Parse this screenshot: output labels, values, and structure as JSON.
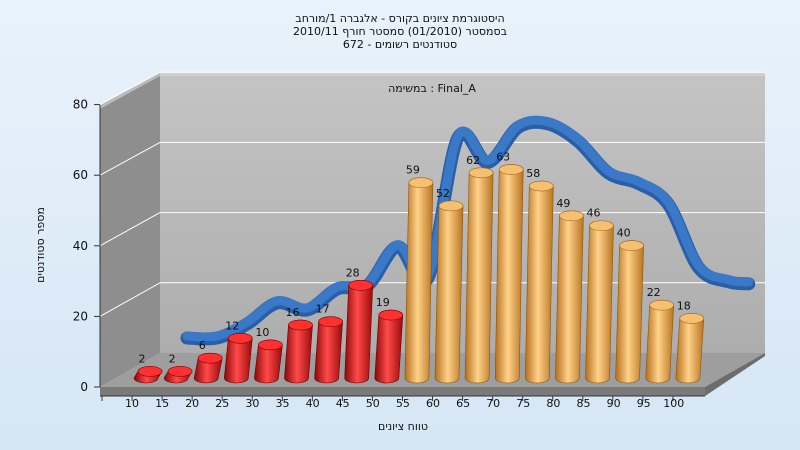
{
  "chart_data": {
    "type": "bar",
    "title_lines": [
      "היסטוגרמת ציונים בקורס - אלגברה 1/מורחב",
      "בסמסטר  (01/2010)  סמסטר חורף  2010/11",
      "סטודנטים רשומים - 672"
    ],
    "annotation": "במשימה : Final_A",
    "xlabel": "טווח ציונים",
    "ylabel": "מספר סטודנטים",
    "categories": [
      "10",
      "15",
      "20",
      "25",
      "30",
      "35",
      "40",
      "45",
      "50",
      "55",
      "60",
      "65",
      "70",
      "75",
      "80",
      "85",
      "90",
      "95",
      "100"
    ],
    "values": [
      2,
      2,
      6,
      12,
      10,
      16,
      17,
      28,
      19,
      59,
      52,
      62,
      63,
      58,
      49,
      46,
      40,
      22,
      18
    ],
    "xticks": [
      "10",
      "15",
      "20",
      "25",
      "30",
      "35",
      "40",
      "45",
      "50",
      "55",
      "60",
      "65",
      "70",
      "75",
      "80",
      "85",
      "90",
      "95",
      "100"
    ],
    "yticks": [
      0,
      20,
      40,
      60,
      80
    ],
    "ylim": [
      0,
      80
    ],
    "pass_threshold": 55,
    "colors": {
      "fail_bar": "#dd2222",
      "pass_bar": "#e8a84a",
      "trend": "#3a78c8",
      "wall_back": "#b8b8b8",
      "wall_side": "#8a8a8a",
      "floor": "#9a9a9a"
    },
    "grid": true,
    "legend": "none"
  }
}
